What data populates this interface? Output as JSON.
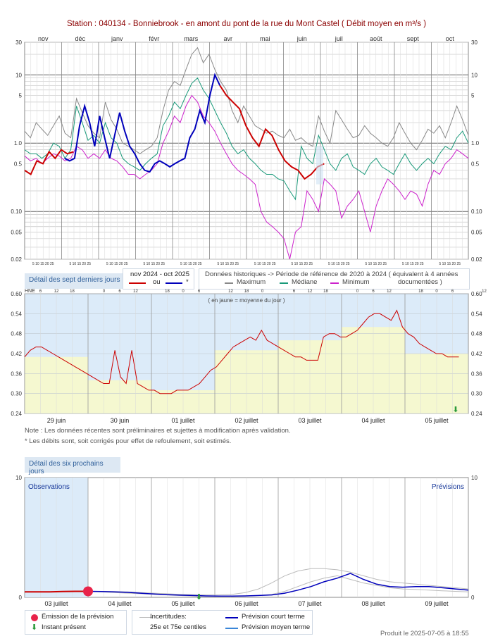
{
  "header": {
    "title": "Station : 040134      -   Bonniebrook - en amont du pont de la rue du Mont Castel   ( Débit moyen en m³/s )"
  },
  "chart_data": [
    {
      "type": "line",
      "name": "annual",
      "x_labels": [
        "nov",
        "déc",
        "janv",
        "févr",
        "mars",
        "avr",
        "mai",
        "juin",
        "juil",
        "août",
        "sept",
        "oct"
      ],
      "day_ticks": "5 10 15 20 25",
      "y_scale": "log",
      "ylim": [
        0.02,
        30
      ],
      "y_ticks": [
        "30",
        "10",
        "5",
        "1.0",
        "0.5",
        "0.10",
        "0.05",
        "0.02"
      ],
      "series": [
        {
          "name": "Maximum",
          "color": "#888888",
          "values": [
            1.5,
            1.2,
            2.0,
            1.6,
            1.3,
            1.8,
            2.5,
            1.4,
            1.2,
            4.5,
            2.8,
            1.8,
            1.4,
            1.2,
            4.0,
            2.2,
            1.6,
            1.0,
            0.9,
            0.8,
            0.7,
            0.8,
            0.9,
            1.2,
            3.0,
            6.0,
            8.0,
            7.0,
            12.0,
            20.0,
            25.0,
            15.0,
            20.0,
            12.0,
            8.0,
            6.0,
            3.0,
            2.0,
            3.5,
            2.5,
            1.8,
            1.6,
            1.4,
            1.5,
            1.3,
            1.2,
            1.6,
            1.1,
            1.2,
            1.0,
            0.9,
            2.5,
            1.5,
            1.0,
            3.0,
            2.2,
            1.6,
            1.2,
            1.3,
            1.8,
            1.4,
            1.2,
            1.0,
            0.9,
            1.2,
            2.0,
            1.4,
            1.0,
            0.8,
            1.1,
            1.6,
            1.4,
            1.8,
            1.2,
            2.0,
            3.5,
            2.2,
            1.3
          ]
        },
        {
          "name": "Médiane",
          "color": "#1a9a7a",
          "values": [
            0.8,
            0.7,
            0.7,
            0.6,
            0.7,
            1.0,
            0.9,
            0.6,
            0.8,
            3.5,
            2.0,
            1.1,
            1.3,
            1.0,
            2.0,
            1.2,
            1.0,
            0.6,
            0.5,
            0.45,
            0.4,
            0.5,
            0.6,
            0.7,
            1.8,
            2.5,
            4.0,
            3.2,
            5.0,
            7.5,
            9.0,
            6.0,
            4.5,
            3.0,
            2.0,
            1.4,
            0.9,
            0.7,
            0.8,
            0.6,
            0.5,
            0.4,
            0.35,
            0.35,
            0.3,
            0.28,
            0.2,
            0.15,
            0.9,
            0.6,
            0.5,
            1.3,
            0.8,
            0.5,
            0.4,
            0.6,
            0.7,
            0.45,
            0.4,
            0.35,
            0.5,
            0.6,
            0.45,
            0.4,
            0.35,
            0.5,
            0.7,
            0.5,
            0.4,
            0.5,
            0.6,
            0.5,
            0.7,
            0.9,
            0.8,
            1.2,
            1.5,
            1.0
          ]
        },
        {
          "name": "Minimum",
          "color": "#cc22cc",
          "values": [
            0.65,
            0.55,
            0.6,
            0.5,
            0.6,
            0.7,
            0.65,
            0.55,
            0.6,
            0.9,
            0.8,
            0.6,
            0.7,
            0.6,
            0.8,
            0.6,
            0.55,
            0.45,
            0.35,
            0.35,
            0.3,
            0.35,
            0.4,
            0.5,
            1.0,
            1.5,
            2.5,
            2.0,
            3.5,
            5.0,
            4.0,
            2.5,
            2.0,
            1.5,
            1.0,
            0.7,
            0.5,
            0.4,
            0.35,
            0.3,
            0.25,
            0.1,
            0.07,
            0.06,
            0.05,
            0.04,
            0.02,
            0.05,
            0.06,
            0.2,
            0.15,
            0.1,
            0.3,
            0.25,
            0.2,
            0.08,
            0.12,
            0.15,
            0.2,
            0.1,
            0.05,
            0.12,
            0.2,
            0.3,
            0.25,
            0.2,
            0.15,
            0.2,
            0.18,
            0.12,
            0.25,
            0.4,
            0.35,
            0.5,
            0.6,
            0.8,
            0.7,
            0.6
          ]
        },
        {
          "name": "nov 2024 - oct 2025",
          "color": "#cc0000",
          "values": [
            0.4,
            0.35,
            0.55,
            0.5,
            0.75,
            0.6,
            0.8,
            0.7,
            0.75
          ]
        },
        {
          "name": "nov 2024 - oct 2025 (*)",
          "color": "#0000bb",
          "values": [
            0.6,
            0.55,
            0.6,
            1.8,
            3.5,
            2.0,
            0.9,
            2.5,
            1.2,
            0.6,
            1.3,
            2.8,
            1.5,
            0.9,
            0.7,
            0.5,
            0.4,
            0.38,
            0.5,
            0.55,
            0.5,
            0.45,
            0.5,
            0.55,
            0.6,
            1.2,
            1.6,
            3.0,
            2.0,
            5.0,
            10.0,
            7.0
          ]
        },
        {
          "name": "recent",
          "color": "#cc0000",
          "values": [
            7.0,
            5.0,
            4.0,
            3.2,
            1.8,
            1.2,
            0.9,
            1.6,
            1.3,
            0.8,
            0.55,
            0.45,
            0.4,
            0.3,
            0.35,
            0.45,
            0.5
          ]
        }
      ]
    },
    {
      "type": "line",
      "name": "seven_days",
      "x_labels": [
        "29 juin",
        "30 juin",
        "01 juillet",
        "02 juillet",
        "03 juillet",
        "04 juillet",
        "05 juillet"
      ],
      "hour_ticks": [
        "6",
        "12",
        "18",
        "0",
        "6",
        "12",
        "18",
        "0",
        "6",
        "12",
        "18",
        "0",
        "6",
        "12",
        "18",
        "0",
        "6",
        "12",
        "18",
        "0",
        "6",
        "12",
        "18",
        "0",
        "6",
        "12",
        "18"
      ],
      "ylim": [
        0.24,
        0.6
      ],
      "y_ticks": [
        "0.60",
        "0.54",
        "0.48",
        "0.42",
        "0.36",
        "0.30",
        "0.24"
      ],
      "daily_means": [
        0.41,
        0.34,
        0.31,
        0.43,
        0.46,
        0.5,
        0.42
      ],
      "series": [
        {
          "name": "Débit",
          "color": "#cc0000",
          "values": [
            0.41,
            0.43,
            0.44,
            0.44,
            0.43,
            0.42,
            0.41,
            0.4,
            0.39,
            0.38,
            0.37,
            0.36,
            0.35,
            0.34,
            0.33,
            0.33,
            0.43,
            0.35,
            0.33,
            0.43,
            0.33,
            0.32,
            0.31,
            0.31,
            0.3,
            0.3,
            0.3,
            0.31,
            0.31,
            0.31,
            0.32,
            0.33,
            0.35,
            0.37,
            0.38,
            0.4,
            0.42,
            0.44,
            0.45,
            0.46,
            0.47,
            0.46,
            0.49,
            0.46,
            0.45,
            0.44,
            0.43,
            0.42,
            0.41,
            0.41,
            0.4,
            0.4,
            0.4,
            0.47,
            0.48,
            0.48,
            0.47,
            0.47,
            0.48,
            0.49,
            0.51,
            0.53,
            0.54,
            0.54,
            0.53,
            0.52,
            0.55,
            0.5,
            0.48,
            0.47,
            0.45,
            0.44,
            0.43,
            0.42,
            0.42,
            0.41,
            0.41,
            0.41
          ]
        }
      ]
    },
    {
      "type": "line",
      "name": "forecast",
      "x_labels": [
        "03 juillet",
        "04 juillet",
        "05 juillet",
        "06 juillet",
        "07 juillet",
        "08 juillet",
        "09 juillet"
      ],
      "hour_ticks": [
        "6",
        "12",
        "18",
        "0",
        "6",
        "12",
        "18",
        "0",
        "6",
        "12",
        "18",
        "0",
        "6",
        "12",
        "18",
        "0",
        "6",
        "12",
        "18",
        "0",
        "6",
        "12",
        "18",
        "0",
        "6",
        "12",
        "18"
      ],
      "ylim": [
        0,
        10
      ],
      "y_ticks": [
        "10",
        "0"
      ],
      "series": [
        {
          "name": "Observations",
          "color": "#cc0000",
          "values": [
            0.45,
            0.45,
            0.46,
            0.48,
            0.5,
            0.5
          ]
        },
        {
          "name": "Prévision court terme",
          "color": "#0000bb",
          "values": [
            0.5,
            0.48,
            0.45,
            0.42,
            0.35,
            0.28,
            0.22,
            0.18,
            0.15,
            0.12,
            0.1,
            0.1,
            0.12,
            0.15,
            0.2,
            0.35,
            0.6,
            0.9,
            1.3,
            1.6,
            2.0,
            1.5,
            1.1,
            0.9,
            0.85,
            0.9,
            0.9,
            0.8,
            0.7,
            0.6
          ]
        },
        {
          "name": "25e centile",
          "color": "#bbbbbb",
          "values": [
            0.5,
            0.45,
            0.4,
            0.35,
            0.3,
            0.25,
            0.2,
            0.15,
            0.1,
            0.08,
            0.08,
            0.08,
            0.1,
            0.15,
            0.25,
            0.5,
            0.9,
            1.3,
            1.6,
            1.8,
            1.5,
            1.2,
            1.0,
            0.8,
            0.7,
            0.65,
            0.6,
            0.55,
            0.5,
            0.45
          ]
        },
        {
          "name": "75e centile",
          "color": "#bbbbbb",
          "values": [
            0.5,
            0.5,
            0.48,
            0.45,
            0.4,
            0.35,
            0.3,
            0.25,
            0.22,
            0.2,
            0.2,
            0.25,
            0.4,
            0.7,
            1.2,
            1.8,
            2.2,
            2.4,
            2.4,
            2.3,
            2.1,
            1.8,
            1.5,
            1.3,
            1.2,
            1.1,
            1.0,
            0.9,
            0.8,
            0.7
          ]
        }
      ]
    }
  ],
  "legend": {
    "recent_detail": "Détail des sept derniers jours",
    "period": "nov 2024 - oct 2025",
    "or": "ou",
    "star": "*",
    "historic": "Données historiques -> Période de référence  de 2020 à 2024   ( équivalent à 4 années",
    "maximum": "Maximum",
    "median": "Médiane",
    "minimum": "Minimum",
    "documented": "documentées )",
    "yellow_mean": "( en jaune = moyenne du jour )",
    "hne": "HNE",
    "next_detail": "Détail des six prochains jours",
    "observations": "Observations",
    "previsions": "Prévisions",
    "emission": "Émission de la prévision",
    "present": "Instant présent",
    "uncertainties": "Incertitudes:",
    "centiles": "25e et 75e centiles",
    "short_term": "Prévision court terme",
    "mid_term": "Prévision moyen terme"
  },
  "notes": {
    "note1": "Note : Les données récentes sont préliminaires et sujettes à modification après validation.",
    "note2": "* Les débits sont, soit corrigés pour effet de refoulement, soit estimés."
  },
  "footer": {
    "produced": "Produit le 2025-07-05 à 18:55"
  },
  "colors": {
    "max": "#888888",
    "median": "#1a9a7a",
    "min": "#cc22cc",
    "recent": "#cc0000",
    "star": "#0000bb",
    "bg_blue": "#dcebf9",
    "yellow": "#f5f8d0"
  }
}
